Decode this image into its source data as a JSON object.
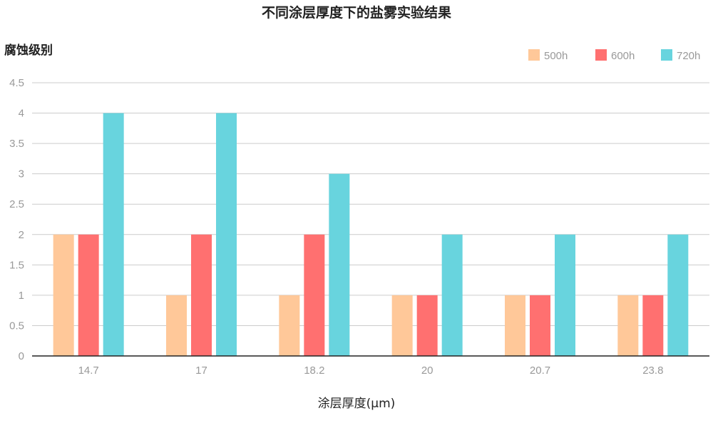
{
  "chart_data": {
    "type": "bar",
    "title": "不同涂层厚度下的盐雾实验结果",
    "ylabel": "腐蚀级别",
    "xlabel": "涂层厚度(μm)",
    "categories": [
      "14.7",
      "17",
      "18.2",
      "20",
      "20.7",
      "23.8"
    ],
    "series": [
      {
        "name": "500h",
        "color": "#FFC899",
        "values": [
          2,
          1,
          1,
          1,
          1,
          1
        ]
      },
      {
        "name": "600h",
        "color": "#FF7070",
        "values": [
          2,
          2,
          2,
          1,
          1,
          1
        ]
      },
      {
        "name": "720h",
        "color": "#68D4DE",
        "values": [
          4,
          4,
          3,
          2,
          2,
          2
        ]
      }
    ],
    "ylim": [
      0,
      4.5
    ],
    "yticks": [
      "0",
      "0.5",
      "1",
      "1.5",
      "2",
      "2.5",
      "3",
      "3.5",
      "4",
      "4.5"
    ],
    "grid": true,
    "legend_position": "top-right"
  }
}
